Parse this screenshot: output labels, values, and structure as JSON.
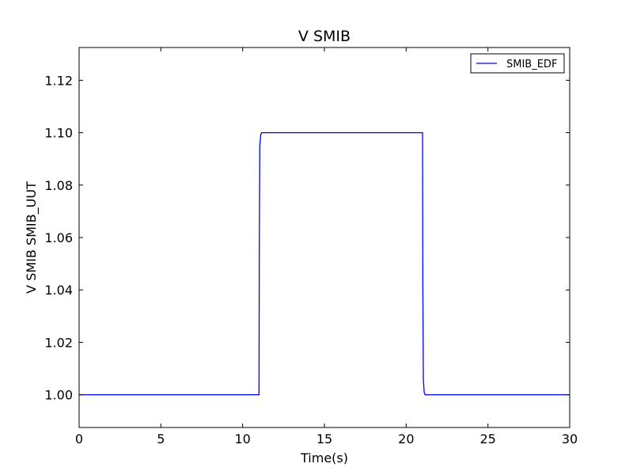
{
  "chart_data": {
    "type": "line",
    "title": "V SMIB",
    "xlabel": "Time(s)",
    "ylabel": "V SMIB SMIB_UUT",
    "xlim": [
      0,
      30
    ],
    "ylim": [
      0.9875,
      1.1325
    ],
    "x_ticks": [
      0,
      5,
      10,
      15,
      20,
      25,
      30
    ],
    "x_tick_labels": [
      "0",
      "5",
      "10",
      "15",
      "20",
      "25",
      "30"
    ],
    "y_ticks": [
      1.0,
      1.02,
      1.04,
      1.06,
      1.08,
      1.1,
      1.12
    ],
    "y_tick_labels": [
      "1.00",
      "1.02",
      "1.04",
      "1.06",
      "1.08",
      "1.10",
      "1.12"
    ],
    "grid": false,
    "legend_position": "top-right",
    "series": [
      {
        "name": "SMIB_EDF",
        "color": "#0000ff",
        "x": [
          0,
          11.0,
          11.02,
          11.05,
          11.1,
          11.15,
          11.2,
          11.4,
          15,
          21.0,
          21.02,
          21.05,
          21.1,
          21.15,
          21.2,
          21.4,
          30
        ],
        "y": [
          1.0,
          1.0,
          1.06,
          1.095,
          1.099,
          1.1,
          1.1,
          1.1,
          1.1,
          1.1,
          1.04,
          1.006,
          1.001,
          1.0,
          1.0,
          1.0,
          1.0
        ]
      }
    ]
  }
}
